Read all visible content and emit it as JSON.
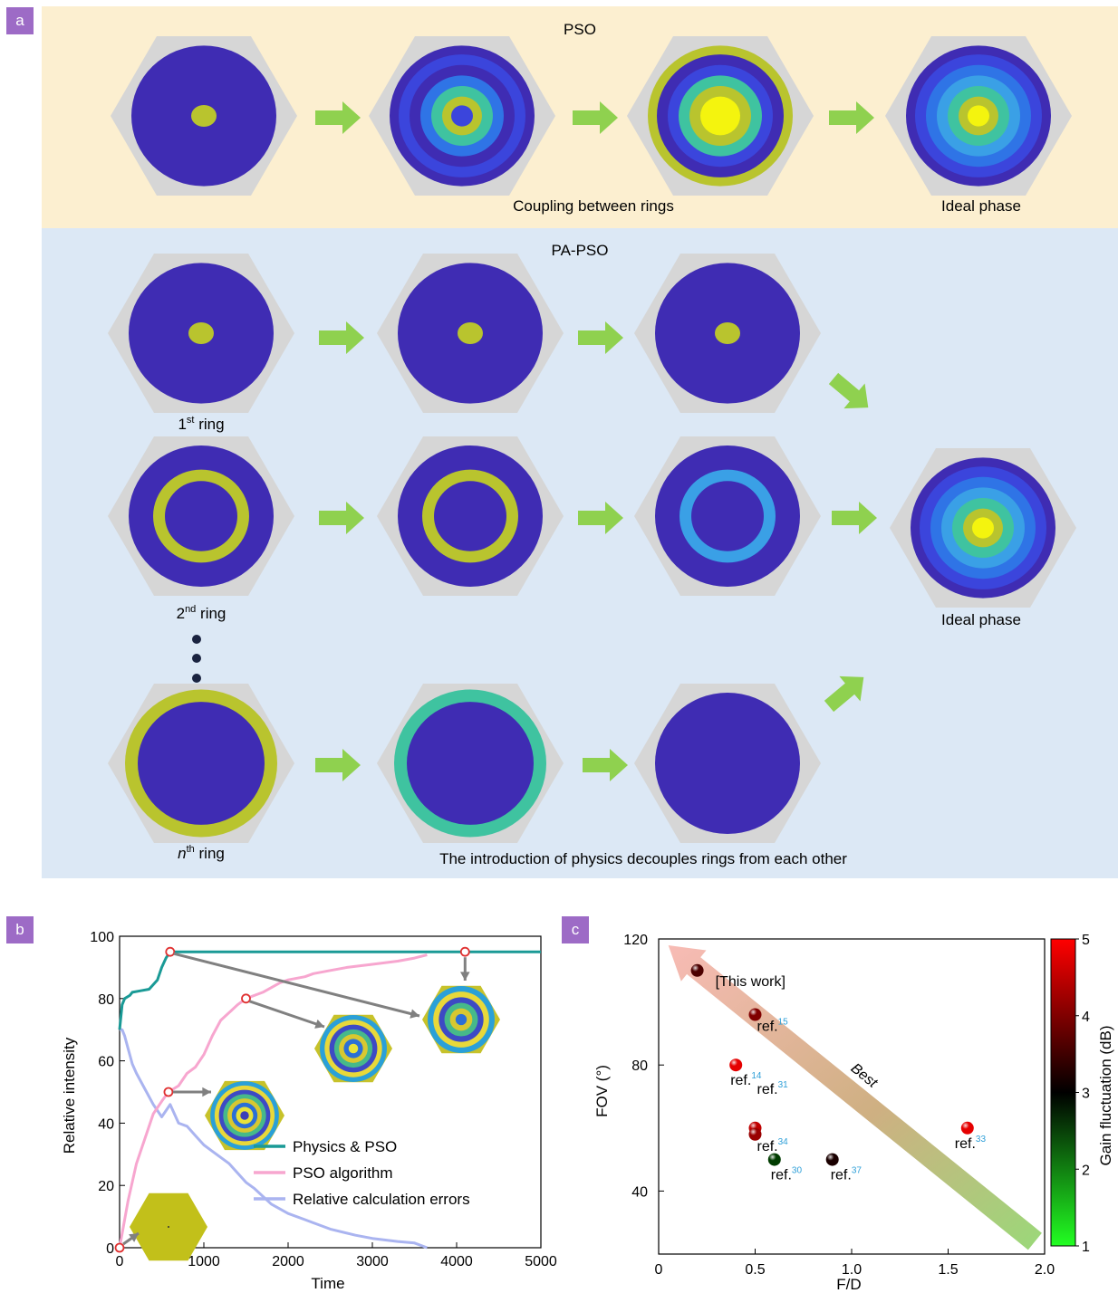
{
  "panel_labels": {
    "a": "a",
    "b": "b",
    "c": "c"
  },
  "panel_a": {
    "pso": {
      "title": "PSO",
      "caption_coupling": "Coupling between rings",
      "caption_ideal": "Ideal phase"
    },
    "papso": {
      "title": "PA-PSO",
      "ring1_base": "1",
      "ring1_sup": "st",
      "ring1_word": " ring",
      "ring2_base": "2",
      "ring2_sup": "nd",
      "ring2_word": " ring",
      "ringn_base": "n",
      "ringn_sup": "th",
      "ringn_word": " ring",
      "caption_ideal": "Ideal phase",
      "caption_decouple": "The introduction of physics decouples rings from each other"
    },
    "colors": {
      "pso_bg": "#fcefd0",
      "papso_bg": "#dce8f5",
      "hexagon": "#d6d6d6",
      "ring_levels": [
        "#3f2cb3",
        "#3b45dc",
        "#2f74e6",
        "#3aa0e6",
        "#3fc3a0",
        "#b9c42e",
        "#f4f40e"
      ],
      "arrow": "#8fd14f"
    }
  },
  "chart_b": {
    "chart_data": {
      "type": "line",
      "xlabel": "Time",
      "ylabel": "Relative intensity",
      "xlim": [
        0,
        5000
      ],
      "ylim": [
        0,
        100
      ],
      "xticks": [
        "0",
        "1000",
        "2000",
        "3000",
        "4000",
        "5000"
      ],
      "yticks": [
        "0",
        "20",
        "40",
        "60",
        "80",
        "100"
      ],
      "series": [
        {
          "name": "Physics & PSO",
          "color": "#1a9a96",
          "x": [
            0,
            30,
            60,
            120,
            150,
            250,
            350,
            450,
            500,
            550,
            600,
            5000
          ],
          "y": [
            70,
            78,
            80,
            81,
            82,
            82.5,
            83,
            86,
            90,
            93,
            95,
            95
          ]
        },
        {
          "name": "PSO algorithm",
          "color": "#f7a6cf",
          "x": [
            0,
            100,
            200,
            300,
            400,
            500,
            580,
            700,
            800,
            900,
            1000,
            1100,
            1200,
            1400,
            1500,
            1700,
            1900,
            2000,
            2200,
            2300,
            2500,
            2700,
            3000,
            3300,
            3500,
            3650
          ],
          "y": [
            0,
            15,
            27,
            35,
            43,
            47,
            50,
            52,
            56,
            58,
            62,
            68,
            73,
            78,
            80,
            82,
            85,
            86,
            87,
            88,
            89,
            90,
            91,
            92,
            93,
            94
          ]
        },
        {
          "name": "Relative calculation errors",
          "color": "#aab4f0",
          "x": [
            0,
            30,
            60,
            100,
            150,
            200,
            300,
            400,
            500,
            550,
            600,
            700,
            800,
            900,
            1000,
            1100,
            1300,
            1500,
            1600,
            1800,
            2000,
            2200,
            2300,
            2500,
            2800,
            3000,
            3300,
            3500,
            3650
          ],
          "y": [
            70,
            70,
            68,
            64,
            59,
            56,
            51,
            46,
            42,
            44,
            46,
            40,
            39,
            36,
            33,
            31,
            27,
            21,
            19,
            14,
            11,
            9,
            8,
            6,
            4,
            3,
            2,
            1.5,
            0
          ]
        }
      ],
      "markers": [
        {
          "x": 0,
          "y": 0
        },
        {
          "x": 600,
          "y": 95
        },
        {
          "x": 580,
          "y": 50
        },
        {
          "x": 1500,
          "y": 80
        },
        {
          "x": 4100,
          "y": 95
        }
      ]
    }
  },
  "chart_c": {
    "chart_data": {
      "type": "scatter",
      "xlabel": "F/D",
      "ylabel": "FOV (°)",
      "xlim": [
        0,
        2.0
      ],
      "ylim": [
        20,
        120
      ],
      "xticks": [
        "0",
        "0.5",
        "1.0",
        "1.5",
        "2.0"
      ],
      "yticks": [
        "40",
        "80",
        "120"
      ],
      "points": [
        {
          "x": 0.2,
          "y": 110,
          "gain": 3.6,
          "label": "[This work]",
          "ref": ""
        },
        {
          "x": 0.5,
          "y": 96,
          "gain": 4.0,
          "label": "ref.",
          "ref": "15"
        },
        {
          "x": 0.4,
          "y": 80,
          "gain": 4.8,
          "label": "ref.",
          "ref": "14"
        },
        {
          "x": 0.5,
          "y": 60,
          "gain": 4.5,
          "label": "ref.",
          "ref": "31"
        },
        {
          "x": 0.5,
          "y": 58,
          "gain": 4.2,
          "label": "ref.",
          "ref": "34"
        },
        {
          "x": 0.6,
          "y": 50,
          "gain": 2.4,
          "label": "ref.",
          "ref": "30"
        },
        {
          "x": 0.9,
          "y": 50,
          "gain": 3.2,
          "label": "ref.",
          "ref": "37"
        },
        {
          "x": 1.6,
          "y": 60,
          "gain": 4.8,
          "label": "ref.",
          "ref": "33"
        }
      ],
      "colorbar": {
        "label": "Gain fluctuation (dB)",
        "range": [
          1,
          5
        ],
        "ticks": [
          "1",
          "2",
          "3",
          "4",
          "5"
        ]
      },
      "annotation": "Best"
    }
  }
}
